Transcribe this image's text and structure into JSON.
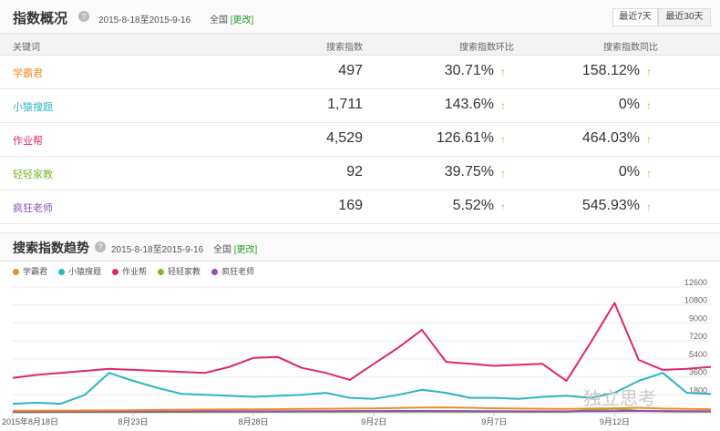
{
  "overview": {
    "title": "指数概况",
    "date_range": "2015-8-18至2015-9-16",
    "region": "全国",
    "change": "[更改]",
    "buttons": [
      "最近7天",
      "最近30天"
    ],
    "active_button": 1,
    "columns": [
      "关键词",
      "搜索指数",
      "搜索指数环比",
      "搜索指数同比"
    ],
    "rows": [
      {
        "keyword": "学霸君",
        "index": "497",
        "mom": "30.71%",
        "yoy": "158.12%",
        "color": "#f08a24"
      },
      {
        "keyword": "小猿搜题",
        "index": "1,711",
        "mom": "143.6%",
        "yoy": "0%",
        "color": "#2ab5c0"
      },
      {
        "keyword": "作业帮",
        "index": "4,529",
        "mom": "126.61%",
        "yoy": "464.03%",
        "color": "#e0246e"
      },
      {
        "keyword": "轻轻家教",
        "index": "92",
        "mom": "39.75%",
        "yoy": "0%",
        "color": "#7ab82a"
      },
      {
        "keyword": "疯狂老师",
        "index": "169",
        "mom": "5.52%",
        "yoy": "545.93%",
        "color": "#8a4fbf"
      }
    ],
    "arrow_icon": "up-arrow-icon"
  },
  "trend": {
    "title": "搜索指数趋势",
    "date_range": "2015-8-18至2015-9-16",
    "region": "全国",
    "change": "[更改]",
    "watermark": "独立思考"
  },
  "chart_data": {
    "type": "line",
    "x_labels": [
      "2015年8月18日",
      "8月23日",
      "8月28日",
      "9月2日",
      "9月7日",
      "9月12日"
    ],
    "x_label_positions": [
      0,
      5,
      10,
      15,
      20,
      25
    ],
    "y_ticks": [
      1800,
      3600,
      5400,
      7200,
      9000,
      10800,
      12600
    ],
    "ylim": [
      0,
      12600
    ],
    "grid": true,
    "legend_position": "top-left",
    "series": [
      {
        "name": "学霸君",
        "color": "#f08a24",
        "values": [
          200,
          200,
          220,
          230,
          240,
          250,
          280,
          300,
          320,
          330,
          340,
          360,
          380,
          400,
          420,
          440,
          480,
          520,
          540,
          500,
          450,
          420,
          400,
          380,
          420,
          450,
          500,
          420,
          380,
          360
        ]
      },
      {
        "name": "小猿搜题",
        "color": "#2ab5c0",
        "values": [
          900,
          1000,
          900,
          1800,
          4000,
          3200,
          2500,
          1900,
          1800,
          1700,
          1600,
          1700,
          1800,
          2000,
          1500,
          1400,
          1800,
          2300,
          2000,
          1500,
          1500,
          1400,
          1600,
          1700,
          1500,
          2000,
          3200,
          4000,
          2000,
          1900
        ]
      },
      {
        "name": "作业帮",
        "color": "#e0246e",
        "values": [
          3500,
          3800,
          4000,
          4200,
          4400,
          4300,
          4200,
          4100,
          4000,
          4600,
          5500,
          5600,
          4500,
          4000,
          3300,
          4900,
          6500,
          8300,
          5100,
          4900,
          4700,
          4800,
          4900,
          3200,
          7000,
          11000,
          5300,
          4300,
          4400,
          4600
        ]
      },
      {
        "name": "轻轻家教",
        "color": "#7ab82a",
        "values": [
          50,
          50,
          60,
          60,
          70,
          70,
          80,
          80,
          80,
          90,
          90,
          90,
          100,
          100,
          100,
          110,
          110,
          120,
          110,
          100,
          100,
          90,
          90,
          90,
          300,
          400,
          200,
          150,
          120,
          100
        ]
      },
      {
        "name": "疯狂老师",
        "color": "#8a4fbf",
        "values": [
          100,
          100,
          110,
          110,
          120,
          120,
          130,
          130,
          140,
          140,
          150,
          150,
          160,
          160,
          170,
          170,
          180,
          180,
          170,
          160,
          160,
          150,
          150,
          150,
          160,
          170,
          180,
          170,
          160,
          160
        ]
      }
    ]
  }
}
